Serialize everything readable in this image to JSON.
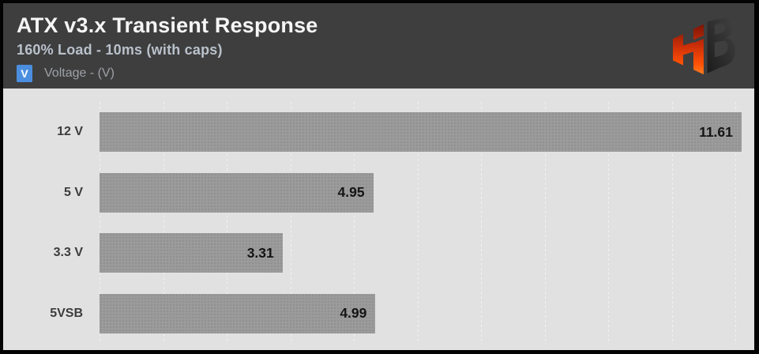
{
  "header": {
    "title": "ATX v3.x Transient Response",
    "subtitle": "160% Load - 10ms (with caps)",
    "legend": {
      "symbol": "V",
      "label": "Voltage - (V)",
      "symbol_color": "#4b8ee0"
    },
    "logo_name": "hardware-busters-hb-logo"
  },
  "chart_data": {
    "type": "bar",
    "orientation": "horizontal",
    "title": "ATX v3.x Transient Response",
    "subtitle": "160% Load - 10ms (with caps)",
    "legend_entries": [
      "Voltage - (V)"
    ],
    "legend_position": "top-left",
    "categories": [
      "12 V",
      "5 V",
      "3.3 V",
      "5VSB"
    ],
    "values": [
      11.61,
      4.95,
      3.31,
      4.99
    ],
    "value_labels": [
      "11.61",
      "4.95",
      "3.31",
      "4.99"
    ],
    "xlabel": "",
    "ylabel": "",
    "xlim": [
      0,
      11.84
    ],
    "grid": "vertical-dotted",
    "gridline_count": 11,
    "bar_color": "#9b9b9b",
    "value_label_color": "#141414",
    "plot_background": "#e1e1e1",
    "header_background": "#3e3e3e"
  },
  "colors": {
    "accent_blue": "#4b8ee0",
    "logo_orange": "#ff5306",
    "logo_dark": "#2b2b2b",
    "border_black": "#030303"
  }
}
